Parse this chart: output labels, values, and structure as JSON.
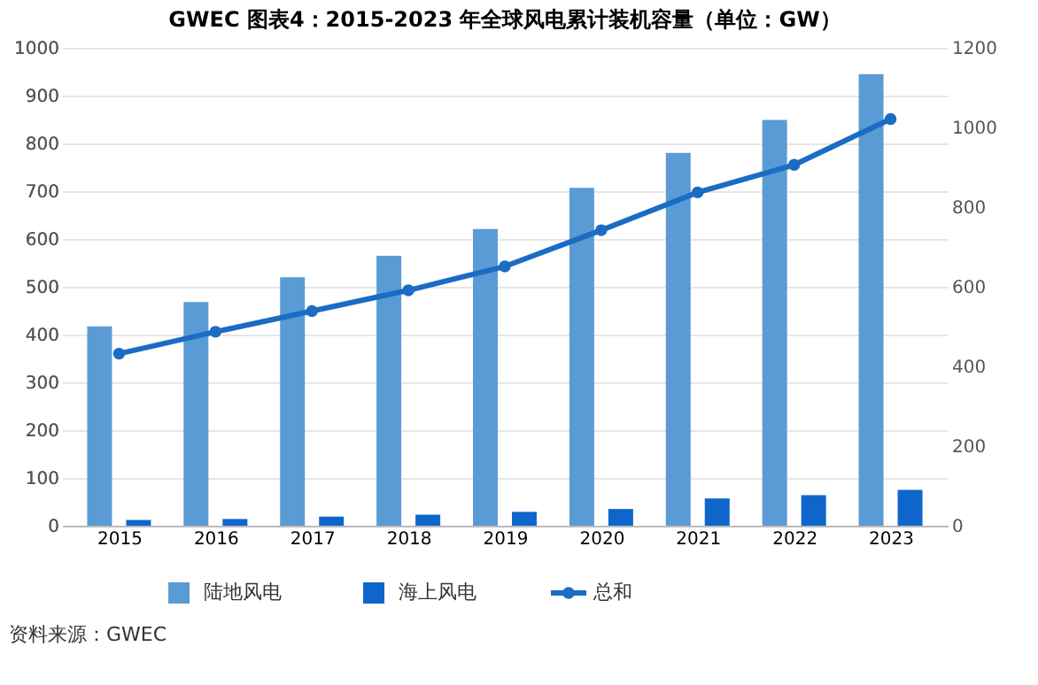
{
  "chart_data": {
    "type": "bar",
    "title": "GWEC 图表4：2015-2023 年全球风电累计装机容量（单位：GW）",
    "categories": [
      "2015",
      "2016",
      "2017",
      "2018",
      "2019",
      "2020",
      "2021",
      "2022",
      "2023"
    ],
    "series": [
      {
        "name": "陆地风电",
        "color": "#5b9bd5",
        "values": [
          417,
          468,
          520,
          565,
          621,
          707,
          780,
          849,
          945
        ]
      },
      {
        "name": "海上风电",
        "color": "#0e66cc",
        "values": [
          12,
          14,
          19,
          23,
          29,
          35,
          57,
          64,
          75
        ]
      },
      {
        "name": "总和",
        "type": "line",
        "axis": "y2",
        "color": "#1a6cc4",
        "values": [
          432,
          487,
          539,
          591,
          651,
          742,
          837,
          906,
          1021
        ]
      }
    ],
    "ylim": [
      0,
      1000
    ],
    "yticks": [
      0,
      100,
      200,
      300,
      400,
      500,
      600,
      700,
      800,
      900,
      1000
    ],
    "y2lim": [
      0,
      1200
    ],
    "y2ticks": [
      0,
      200,
      400,
      600,
      800,
      1000,
      1200
    ],
    "grid": "y",
    "legend": "bottom",
    "marker": "circle",
    "annotations": [
      "资料来源：GWEC"
    ]
  }
}
